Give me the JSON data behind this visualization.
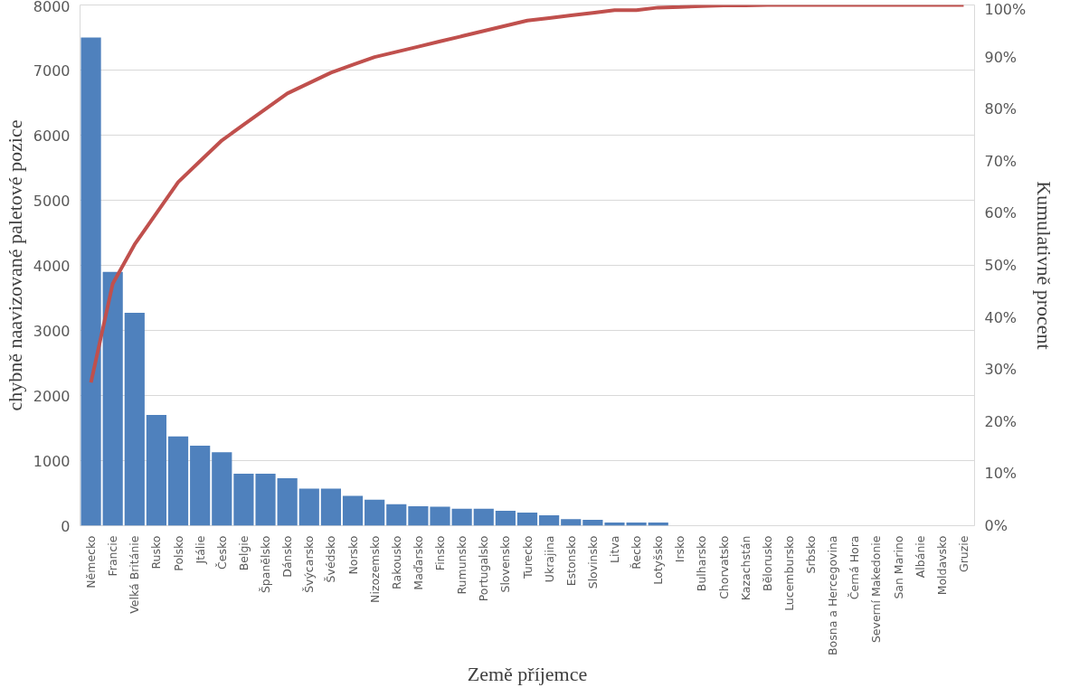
{
  "chart_data": {
    "type": "bar",
    "xlabel": "Země příjemce",
    "ylabel": "chybně naavizované paletové pozice",
    "y2label": "Kumulativně procent",
    "categories": [
      "Německo",
      "Francie",
      "Velká Británie",
      "Rusko",
      "Polsko",
      "Jtálie",
      "Česko",
      "Belgie",
      "Španělsko",
      "Dánsko",
      "Švýcarsko",
      "Švédsko",
      "Norsko",
      "Nizozemsko",
      "Rakousko",
      "Maďarsko",
      "Finsko",
      "Rumunsko",
      "Portugalsko",
      "Slovensko",
      "Turecko",
      "Ukrajina",
      "Estonsko",
      "Slovinsko",
      "Litva",
      "Řecko",
      "Lotyšsko",
      "Irsko",
      "Bulharsko",
      "Chorvatsko",
      "Kazachstán",
      "Bělorusko",
      "Lucembursko",
      "Srbsko",
      "Bosna a Hercegovina",
      "Černá Hora",
      "Severní Makedonie",
      "San Marino",
      "Albánie",
      "Moldavsko",
      "Gruzie"
    ],
    "series": [
      {
        "color": "#4f81bd",
        "values": [
          7500,
          3900,
          3270,
          1700,
          1370,
          1230,
          1130,
          800,
          800,
          730,
          570,
          570,
          460,
          400,
          330,
          300,
          290,
          260,
          260,
          230,
          200,
          160,
          100,
          90,
          50,
          50,
          50,
          0,
          0,
          0,
          0,
          0,
          0,
          0,
          0,
          0,
          0,
          0,
          0,
          0,
          0
        ]
      },
      {
        "type": "line",
        "axis": "y2",
        "color": "#c0504d",
        "values": [
          27.5,
          46.5,
          54,
          60,
          66,
          70,
          74,
          77,
          80,
          83,
          85,
          87,
          88.5,
          90,
          91,
          92,
          93,
          94,
          95,
          96,
          97,
          97.5,
          98,
          98.5,
          99,
          99,
          99.5,
          99.6,
          99.8,
          99.9,
          99.9,
          100,
          100,
          100,
          100,
          100,
          100,
          100,
          100,
          100,
          100
        ]
      }
    ],
    "ylim": [
      0,
      8000
    ],
    "yticks": [
      0,
      1000,
      2000,
      3000,
      4000,
      5000,
      6000,
      7000,
      8000
    ],
    "y2lim": [
      0,
      100
    ],
    "y2ticks": [
      {
        "value": 0,
        "label": "0%"
      },
      {
        "value": 10,
        "label": "10%"
      },
      {
        "value": 20,
        "label": "20%"
      },
      {
        "value": 30,
        "label": "30%"
      },
      {
        "value": 40,
        "label": "40%"
      },
      {
        "value": 50,
        "label": "50%"
      },
      {
        "value": 60,
        "label": "60%"
      },
      {
        "value": 70,
        "label": "70%"
      },
      {
        "value": 80,
        "label": "80%"
      },
      {
        "value": 90,
        "label": "90%"
      },
      {
        "value": 100,
        "label": "100%"
      }
    ],
    "grid": "y"
  }
}
